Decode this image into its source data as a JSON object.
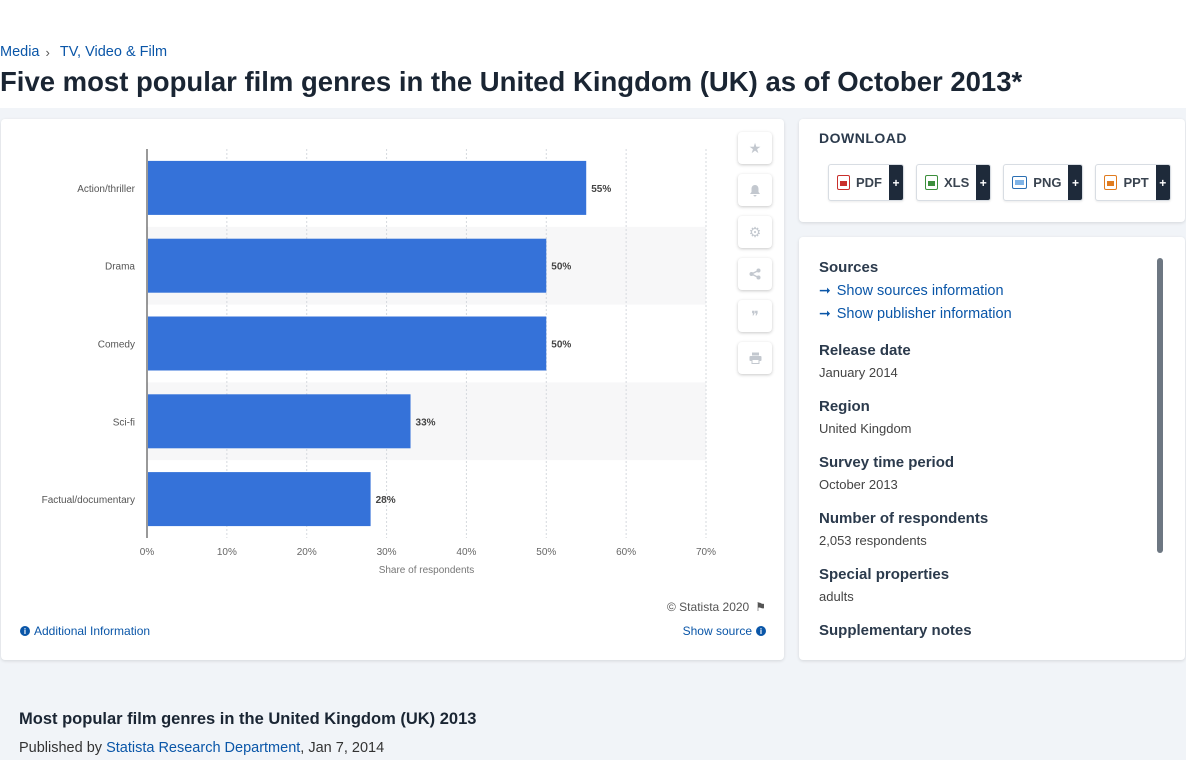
{
  "breadcrumb": {
    "item1": "Media",
    "item2": "TV, Video & Film"
  },
  "page_title": "Five most popular film genres in the United Kingdom (UK) as of October 2013*",
  "chart_data": {
    "type": "bar",
    "orientation": "horizontal",
    "categories": [
      "Action/thriller",
      "Drama",
      "Comedy",
      "Sci-fi",
      "Factual/documentary"
    ],
    "values": [
      55,
      50,
      50,
      33,
      28
    ],
    "value_labels": [
      "55%",
      "50%",
      "50%",
      "33%",
      "28%"
    ],
    "xlabel": "Share of respondents",
    "xlim": [
      0,
      70
    ],
    "xticks": [
      "0%",
      "10%",
      "20%",
      "30%",
      "40%",
      "50%",
      "60%",
      "70%"
    ],
    "grid": true,
    "bar_color": "#3572d9"
  },
  "chart_footer": {
    "copyright": "© Statista 2020",
    "additional_info": "Additional Information",
    "show_source": "Show source"
  },
  "download": {
    "title": "DOWNLOAD",
    "buttons": [
      {
        "label": "PDF",
        "plus": "+"
      },
      {
        "label": "XLS",
        "plus": "+"
      },
      {
        "label": "PNG",
        "plus": "+"
      },
      {
        "label": "PPT",
        "plus": "+"
      }
    ]
  },
  "sources": {
    "heading": "Sources",
    "link1": "Show sources information",
    "link2": "Show publisher information",
    "release_date_label": "Release date",
    "release_date": "January 2014",
    "region_label": "Region",
    "region": "United Kingdom",
    "survey_label": "Survey time period",
    "survey": "October 2013",
    "respondents_label": "Number of respondents",
    "respondents": "2,053 respondents",
    "special_label": "Special properties",
    "special": "adults",
    "supp_label": "Supplementary notes"
  },
  "related": {
    "title": "Most popular film genres in the United Kingdom (UK) 2013",
    "published_by": "Published by",
    "publisher": "Statista Research Department",
    "date": ", Jan 7, 2014"
  }
}
